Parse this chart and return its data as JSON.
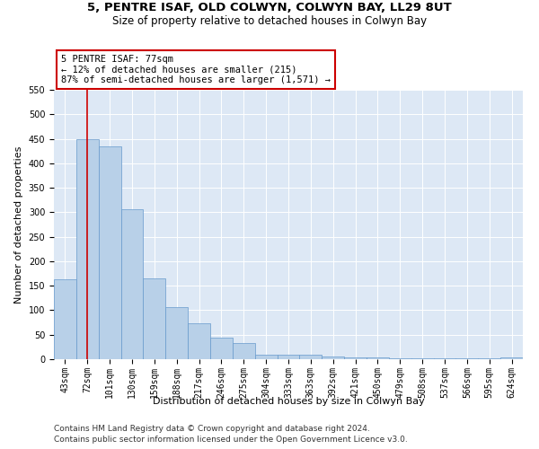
{
  "title_line1": "5, PENTRE ISAF, OLD COLWYN, COLWYN BAY, LL29 8UT",
  "title_line2": "Size of property relative to detached houses in Colwyn Bay",
  "xlabel": "Distribution of detached houses by size in Colwyn Bay",
  "ylabel": "Number of detached properties",
  "categories": [
    "43sqm",
    "72sqm",
    "101sqm",
    "130sqm",
    "159sqm",
    "188sqm",
    "217sqm",
    "246sqm",
    "275sqm",
    "304sqm",
    "333sqm",
    "363sqm",
    "392sqm",
    "421sqm",
    "450sqm",
    "479sqm",
    "508sqm",
    "537sqm",
    "566sqm",
    "595sqm",
    "624sqm"
  ],
  "values": [
    163,
    450,
    435,
    307,
    165,
    106,
    73,
    44,
    33,
    10,
    10,
    10,
    5,
    3,
    3,
    2,
    1,
    1,
    1,
    1,
    3
  ],
  "bar_color": "#b8d0e8",
  "bar_edge_color": "#6699cc",
  "vline_x": 1,
  "vline_color": "#cc0000",
  "annotation_text": "5 PENTRE ISAF: 77sqm\n← 12% of detached houses are smaller (215)\n87% of semi-detached houses are larger (1,571) →",
  "annotation_box_color": "#ffffff",
  "annotation_box_edge": "#cc0000",
  "ylim": [
    0,
    550
  ],
  "yticks": [
    0,
    50,
    100,
    150,
    200,
    250,
    300,
    350,
    400,
    450,
    500,
    550
  ],
  "plot_bg": "#dde8f5",
  "footer_line1": "Contains HM Land Registry data © Crown copyright and database right 2024.",
  "footer_line2": "Contains public sector information licensed under the Open Government Licence v3.0.",
  "title_fontsize": 9.5,
  "subtitle_fontsize": 8.5,
  "axis_label_fontsize": 8,
  "tick_fontsize": 7,
  "annotation_fontsize": 7.5,
  "footer_fontsize": 6.5
}
